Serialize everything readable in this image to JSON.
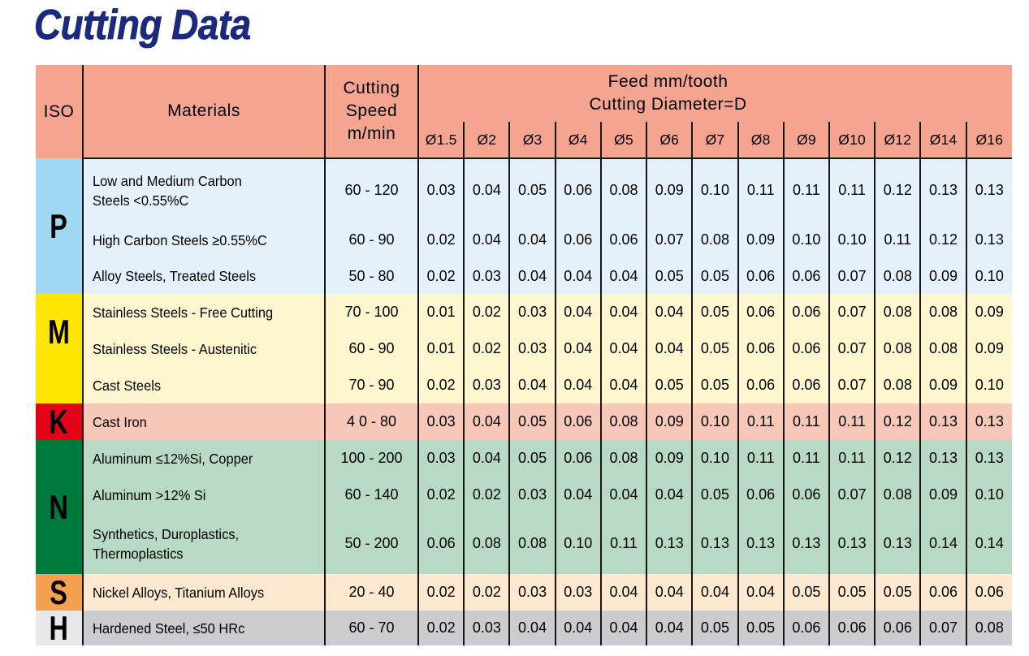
{
  "title": "Cutting Data",
  "table": {
    "headers": {
      "iso": "ISO",
      "materials": "Materials",
      "speed_lines": [
        "Cutting",
        "Speed",
        "m/min"
      ],
      "feed_title_line1": "Feed mm/tooth",
      "feed_title_line2": "Cutting Diameter=D",
      "diameters": [
        "Ø1.5",
        "Ø2",
        "Ø3",
        "Ø4",
        "Ø5",
        "Ø6",
        "Ø7",
        "Ø8",
        "Ø9",
        "Ø10",
        "Ø12",
        "Ø14",
        "Ø16"
      ]
    },
    "groups": [
      {
        "iso": "P",
        "iso_bg": "#a0d7f2",
        "row_bg": "#e4f1fa",
        "rows": [
          {
            "material_lines": [
              "Low and Medium Carbon",
              "Steels <0.55%C"
            ],
            "speed": "60 - 120",
            "feeds": [
              "0.03",
              "0.04",
              "0.05",
              "0.06",
              "0.08",
              "0.09",
              "0.10",
              "0.11",
              "0.11",
              "0.11",
              "0.12",
              "0.13",
              "0.13"
            ]
          },
          {
            "material_lines": [
              "High Carbon Steels ≥0.55%C"
            ],
            "speed": "60 - 90",
            "feeds": [
              "0.02",
              "0.04",
              "0.04",
              "0.06",
              "0.06",
              "0.07",
              "0.08",
              "0.09",
              "0.10",
              "0.10",
              "0.11",
              "0.12",
              "0.13"
            ]
          },
          {
            "material_lines": [
              "Alloy Steels, Treated Steels"
            ],
            "speed": "50 - 80",
            "feeds": [
              "0.02",
              "0.03",
              "0.04",
              "0.04",
              "0.04",
              "0.05",
              "0.05",
              "0.06",
              "0.06",
              "0.07",
              "0.08",
              "0.09",
              "0.10"
            ]
          }
        ]
      },
      {
        "iso": "M",
        "iso_bg": "#ffe502",
        "row_bg": "#fdf6cf",
        "rows": [
          {
            "material_lines": [
              "Stainless Steels - Free Cutting"
            ],
            "speed": "70 - 100",
            "feeds": [
              "0.01",
              "0.02",
              "0.03",
              "0.04",
              "0.04",
              "0.04",
              "0.05",
              "0.06",
              "0.06",
              "0.07",
              "0.08",
              "0.08",
              "0.09"
            ]
          },
          {
            "material_lines": [
              "Stainless Steels - Austenitic"
            ],
            "speed": "60 - 90",
            "feeds": [
              "0.01",
              "0.02",
              "0.03",
              "0.04",
              "0.04",
              "0.04",
              "0.05",
              "0.06",
              "0.06",
              "0.07",
              "0.08",
              "0.08",
              "0.09"
            ]
          },
          {
            "material_lines": [
              "Cast Steels"
            ],
            "speed": "70 - 90",
            "feeds": [
              "0.02",
              "0.03",
              "0.04",
              "0.04",
              "0.04",
              "0.05",
              "0.05",
              "0.06",
              "0.06",
              "0.07",
              "0.08",
              "0.09",
              "0.10"
            ]
          }
        ]
      },
      {
        "iso": "K",
        "iso_bg": "#e20416",
        "row_bg": "#f7c7b7",
        "rows": [
          {
            "material_lines": [
              "Cast Iron"
            ],
            "speed": "4 0 - 80",
            "feeds": [
              "0.03",
              "0.04",
              "0.05",
              "0.06",
              "0.08",
              "0.09",
              "0.10",
              "0.11",
              "0.11",
              "0.11",
              "0.12",
              "0.13",
              "0.13"
            ]
          }
        ]
      },
      {
        "iso": "N",
        "iso_bg": "#007a3c",
        "row_bg": "#b9d9c7",
        "rows": [
          {
            "material_lines": [
              "Aluminum ≤12%Si, Copper"
            ],
            "speed": "100 - 200",
            "feeds": [
              "0.03",
              "0.04",
              "0.05",
              "0.06",
              "0.08",
              "0.09",
              "0.10",
              "0.11",
              "0.11",
              "0.11",
              "0.12",
              "0.13",
              "0.13"
            ]
          },
          {
            "material_lines": [
              "Aluminum >12% Si"
            ],
            "speed": "60 - 140",
            "feeds": [
              "0.02",
              "0.02",
              "0.03",
              "0.04",
              "0.04",
              "0.04",
              "0.05",
              "0.06",
              "0.06",
              "0.07",
              "0.08",
              "0.09",
              "0.10"
            ]
          },
          {
            "material_lines": [
              "Synthetics, Duroplastics,",
              "Thermoplastics"
            ],
            "speed": "50 - 200",
            "feeds": [
              "0.06",
              "0.08",
              "0.08",
              "0.10",
              "0.11",
              "0.13",
              "0.13",
              "0.13",
              "0.13",
              "0.13",
              "0.13",
              "0.14",
              "0.14"
            ]
          }
        ]
      },
      {
        "iso": "S",
        "iso_bg": "#f4a04f",
        "row_bg": "#fce8ce",
        "rows": [
          {
            "material_lines": [
              "Nickel Alloys, Titanium Alloys"
            ],
            "speed": "20 - 40",
            "feeds": [
              "0.02",
              "0.02",
              "0.03",
              "0.03",
              "0.04",
              "0.04",
              "0.04",
              "0.04",
              "0.05",
              "0.05",
              "0.05",
              "0.06",
              "0.06"
            ]
          }
        ]
      },
      {
        "iso": "H",
        "iso_bg": "#e8e8ea",
        "row_bg": "#cbcbd0",
        "rows": [
          {
            "material_lines": [
              "Hardened Steel, ≤50 HRc"
            ],
            "speed": "60 - 70",
            "feeds": [
              "0.02",
              "0.03",
              "0.04",
              "0.04",
              "0.04",
              "0.04",
              "0.05",
              "0.05",
              "0.06",
              "0.06",
              "0.06",
              "0.07",
              "0.08"
            ]
          }
        ]
      }
    ],
    "header_bg": "#f5a490"
  }
}
